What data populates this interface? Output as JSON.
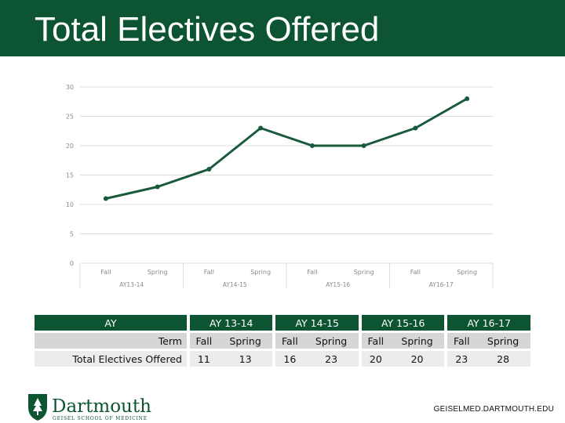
{
  "title": "Total Electives Offered",
  "chart_data": {
    "type": "line",
    "title": "",
    "xlabel": "",
    "ylabel": "",
    "ylim": [
      0,
      30
    ],
    "yticks": [
      0,
      5,
      10,
      15,
      20,
      25,
      30
    ],
    "categories": [
      "Fall",
      "Spring",
      "Fall",
      "Spring",
      "Fall",
      "Spring",
      "Fall",
      "Spring"
    ],
    "groups": [
      "AY13-14",
      "AY14-15",
      "AY15-16",
      "AY16-17"
    ],
    "series": [
      {
        "name": "Total Electives Offered",
        "values": [
          11,
          13,
          16,
          23,
          20,
          20,
          23,
          28
        ]
      }
    ],
    "grid": true,
    "colors": {
      "line": "#1a5a3c",
      "grid": "#dcdcdc"
    }
  },
  "table": {
    "ay_label": "AY",
    "years": [
      "AY 13-14",
      "AY 14-15",
      "AY 15-16",
      "AY 16-17"
    ],
    "term_label": "Term",
    "terms": [
      "Fall",
      "Spring",
      "Fall",
      "Spring",
      "Fall",
      "Spring",
      "Fall",
      "Spring"
    ],
    "total_label": "Total Electives Offered",
    "totals": [
      "11",
      "13",
      "16",
      "23",
      "20",
      "20",
      "23",
      "28"
    ]
  },
  "logo": {
    "name": "Dartmouth",
    "sub": "GEISEL SCHOOL OF MEDICINE"
  },
  "footer": {
    "url": "GEISELMED.DARTMOUTH.EDU"
  },
  "colors": {
    "brand": "#0d5532"
  }
}
